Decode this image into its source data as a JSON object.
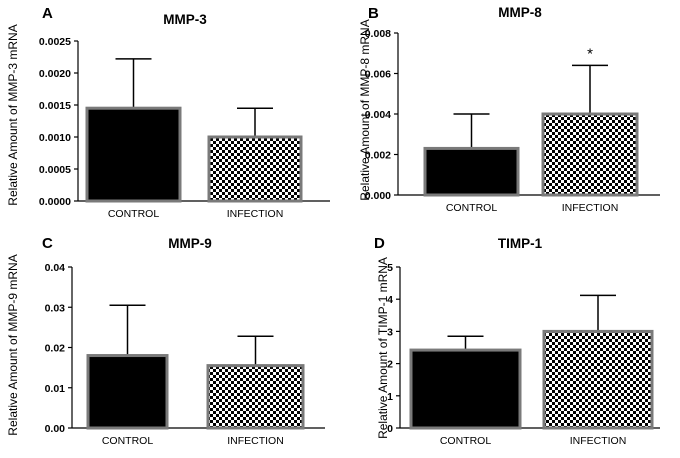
{
  "figure": {
    "panels": [
      {
        "letter": "A"
      },
      {
        "letter": "B"
      },
      {
        "letter": "C"
      },
      {
        "letter": "D"
      }
    ]
  },
  "chart_data": [
    {
      "type": "bar",
      "title": "MMP-3",
      "ylabel": "Relative Amount of MMP-3 mRNA",
      "xlabel": "",
      "categories": [
        "CONTROL",
        "INFECTION"
      ],
      "values": [
        0.00145,
        0.001
      ],
      "error_upper": [
        0.00222,
        0.00145
      ],
      "ylim": [
        0,
        0.0025
      ],
      "yticks": [
        0,
        0.0005,
        0.001,
        0.0015,
        0.002,
        0.0025
      ],
      "ytick_labels": [
        "0.0000",
        "0.0005",
        "0.0010",
        "0.0015",
        "0.0020",
        "0.0025"
      ],
      "fills": [
        "solid",
        "checker"
      ],
      "annotations": []
    },
    {
      "type": "bar",
      "title": "MMP-8",
      "ylabel": "Relative Amount of MMP-8 mRNA",
      "xlabel": "",
      "categories": [
        "CONTROL",
        "INFECTION"
      ],
      "values": [
        0.0023,
        0.004
      ],
      "error_upper": [
        0.004,
        0.0064
      ],
      "ylim": [
        0,
        0.008
      ],
      "yticks": [
        0,
        0.002,
        0.004,
        0.006,
        0.008
      ],
      "ytick_labels": [
        "0.000",
        "0.002",
        "0.004",
        "0.006",
        "0.008"
      ],
      "fills": [
        "solid",
        "checker"
      ],
      "annotations": [
        {
          "category": "INFECTION",
          "text": "*"
        }
      ]
    },
    {
      "type": "bar",
      "title": "MMP-9",
      "ylabel": "Relative Amount of MMP-9 mRNA",
      "xlabel": "",
      "categories": [
        "CONTROL",
        "INFECTION"
      ],
      "values": [
        0.018,
        0.0155
      ],
      "error_upper": [
        0.0305,
        0.0228
      ],
      "ylim": [
        0,
        0.04
      ],
      "yticks": [
        0,
        0.01,
        0.02,
        0.03,
        0.04
      ],
      "ytick_labels": [
        "0.00",
        "0.01",
        "0.02",
        "0.03",
        "0.04"
      ],
      "fills": [
        "solid",
        "checker"
      ],
      "annotations": []
    },
    {
      "type": "bar",
      "title": "TIMP-1",
      "ylabel": "Relative Amount of TIMP-1 mRNA",
      "xlabel": "",
      "categories": [
        "CONTROL",
        "INFECTION"
      ],
      "values": [
        2.42,
        3.0
      ],
      "error_upper": [
        2.85,
        4.12
      ],
      "ylim": [
        0,
        5
      ],
      "yticks": [
        0,
        1,
        2,
        3,
        4,
        5
      ],
      "ytick_labels": [
        "0",
        "1",
        "2",
        "3",
        "4",
        "5"
      ],
      "fills": [
        "solid",
        "checker"
      ],
      "annotations": []
    }
  ]
}
